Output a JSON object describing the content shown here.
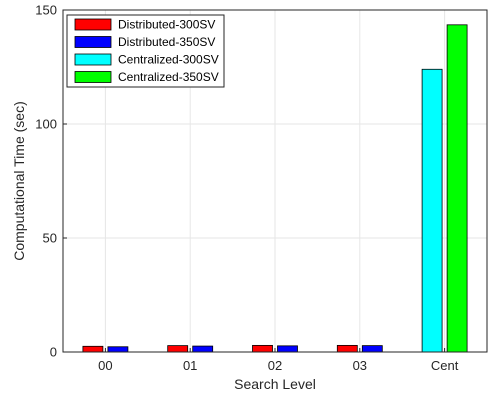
{
  "chart_data": {
    "type": "bar",
    "title": "",
    "xlabel": "Search Level",
    "ylabel": "Computational Time (sec)",
    "categories": [
      "00",
      "01",
      "02",
      "03",
      "Cent"
    ],
    "ylim": [
      0,
      150
    ],
    "yticks": [
      0,
      50,
      100,
      150
    ],
    "grid": true,
    "legend_position": "top-left",
    "series": [
      {
        "name": "Distributed-300SV",
        "color": "#ff0000",
        "values": [
          2.5,
          2.8,
          2.9,
          2.9,
          null
        ]
      },
      {
        "name": "Distributed-350SV",
        "color": "#0000ff",
        "values": [
          2.3,
          2.6,
          2.7,
          2.8,
          null
        ]
      },
      {
        "name": "Centralized-300SV",
        "color": "#00ffff",
        "values": [
          null,
          null,
          null,
          null,
          124
        ]
      },
      {
        "name": "Centralized-350SV",
        "color": "#00ff00",
        "values": [
          null,
          null,
          null,
          null,
          143.5
        ]
      }
    ]
  }
}
